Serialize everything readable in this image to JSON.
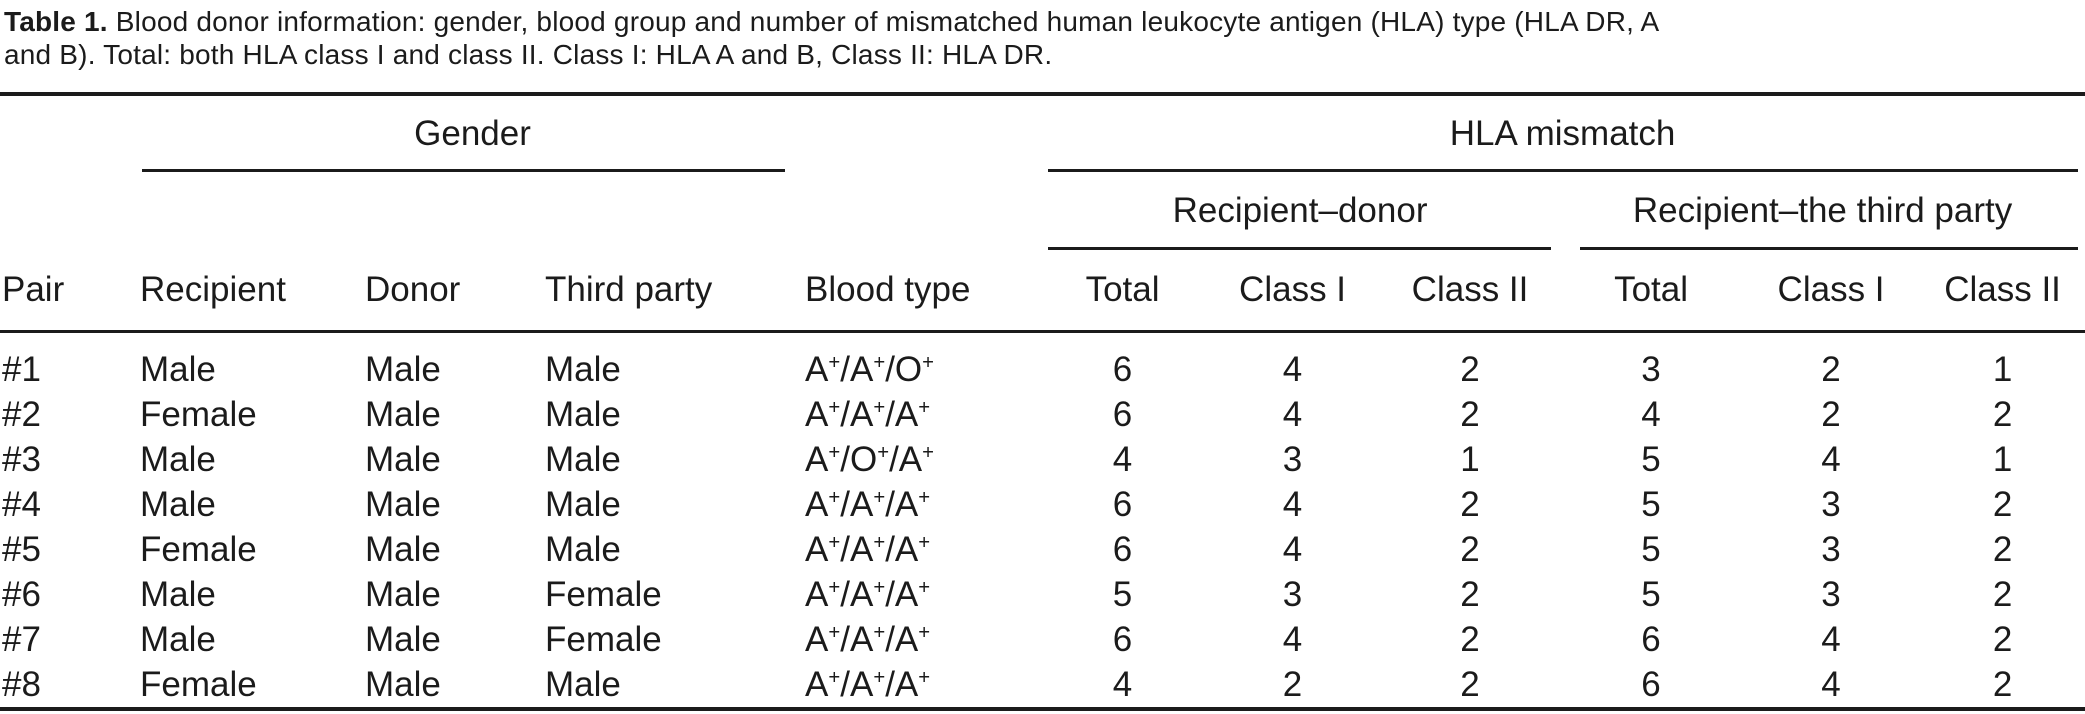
{
  "caption": {
    "label": "Table 1.",
    "line1": "Blood donor information: gender, blood group and number of mismatched human leukocyte antigen (HLA) type (HLA DR, A",
    "line2": "and B). Total: both HLA class I and class II. Class I: HLA A and B, Class II: HLA DR."
  },
  "header": {
    "gender_group": "Gender",
    "hla_group": "HLA mismatch",
    "recipient_donor_group": "Recipient–donor",
    "recipient_third_party_group": "Recipient–the third party",
    "columns": [
      "Pair",
      "Recipient",
      "Donor",
      "Third party",
      "Blood type",
      "Total",
      "Class I",
      "Class II",
      "Total",
      "Class I",
      "Class II"
    ]
  },
  "rows": [
    {
      "pair": "#1",
      "recipient": "Male",
      "donor": "Male",
      "third_party": "Male",
      "blood_type": "A+/A+/O+",
      "recipient_donor": {
        "total": "6",
        "class_i": "4",
        "class_ii": "2"
      },
      "recipient_third_party": {
        "total": "3",
        "class_i": "2",
        "class_ii": "1"
      }
    },
    {
      "pair": "#2",
      "recipient": "Female",
      "donor": "Male",
      "third_party": "Male",
      "blood_type": "A+/A+/A+",
      "recipient_donor": {
        "total": "6",
        "class_i": "4",
        "class_ii": "2"
      },
      "recipient_third_party": {
        "total": "4",
        "class_i": "2",
        "class_ii": "2"
      }
    },
    {
      "pair": "#3",
      "recipient": "Male",
      "donor": "Male",
      "third_party": "Male",
      "blood_type": "A+/O+/A+",
      "recipient_donor": {
        "total": "4",
        "class_i": "3",
        "class_ii": "1"
      },
      "recipient_third_party": {
        "total": "5",
        "class_i": "4",
        "class_ii": "1"
      }
    },
    {
      "pair": "#4",
      "recipient": "Male",
      "donor": "Male",
      "third_party": "Male",
      "blood_type": "A+/A+/A+",
      "recipient_donor": {
        "total": "6",
        "class_i": "4",
        "class_ii": "2"
      },
      "recipient_third_party": {
        "total": "5",
        "class_i": "3",
        "class_ii": "2"
      }
    },
    {
      "pair": "#5",
      "recipient": "Female",
      "donor": "Male",
      "third_party": "Male",
      "blood_type": "A+/A+/A+",
      "recipient_donor": {
        "total": "6",
        "class_i": "4",
        "class_ii": "2"
      },
      "recipient_third_party": {
        "total": "5",
        "class_i": "3",
        "class_ii": "2"
      }
    },
    {
      "pair": "#6",
      "recipient": "Male",
      "donor": "Male",
      "third_party": "Female",
      "blood_type": "A+/A+/A+",
      "recipient_donor": {
        "total": "5",
        "class_i": "3",
        "class_ii": "2"
      },
      "recipient_third_party": {
        "total": "5",
        "class_i": "3",
        "class_ii": "2"
      }
    },
    {
      "pair": "#7",
      "recipient": "Male",
      "donor": "Male",
      "third_party": "Female",
      "blood_type": "A+/A+/A+",
      "recipient_donor": {
        "total": "6",
        "class_i": "4",
        "class_ii": "2"
      },
      "recipient_third_party": {
        "total": "6",
        "class_i": "4",
        "class_ii": "2"
      }
    },
    {
      "pair": "#8",
      "recipient": "Female",
      "donor": "Male",
      "third_party": "Male",
      "blood_type": "A+/A+/A+",
      "recipient_donor": {
        "total": "4",
        "class_i": "2",
        "class_ii": "2"
      },
      "recipient_third_party": {
        "total": "6",
        "class_i": "4",
        "class_ii": "2"
      }
    }
  ],
  "colors": {
    "text": "#1b1b1b",
    "rule": "#1b1b1b",
    "background": "#ffffff"
  }
}
